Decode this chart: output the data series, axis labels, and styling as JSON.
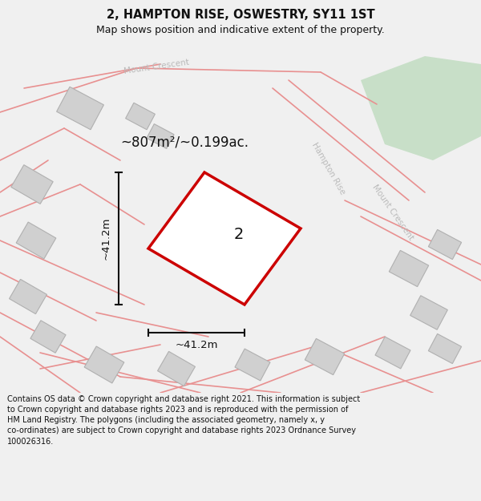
{
  "title": "2, HAMPTON RISE, OSWESTRY, SY11 1ST",
  "subtitle": "Map shows position and indicative extent of the property.",
  "area_label": "~807m²/~0.199ac.",
  "plot_number": "2",
  "dim_h": "~41.2m",
  "dim_v": "~41.2m",
  "footer": "Contains OS data © Crown copyright and database right 2021. This information is subject to Crown copyright and database rights 2023 and is reproduced with the permission of HM Land Registry. The polygons (including the associated geometry, namely x, y co-ordinates) are subject to Crown copyright and database rights 2023 Ordnance Survey 100026316.",
  "bg_color": "#f0f0f0",
  "map_bg": "#ffffff",
  "road_color": "#e89090",
  "building_color": "#d0d0d0",
  "building_edge": "#b0b0b0",
  "plot_edge": "#cc0000",
  "plot_fill": "#ffffff",
  "green_area": "#c8dfc8",
  "dim_line_color": "#111111",
  "text_color": "#111111",
  "street_label_color": "#bbbbbb",
  "title_fontsize": 10.5,
  "subtitle_fontsize": 9,
  "footer_fontsize": 7.0
}
